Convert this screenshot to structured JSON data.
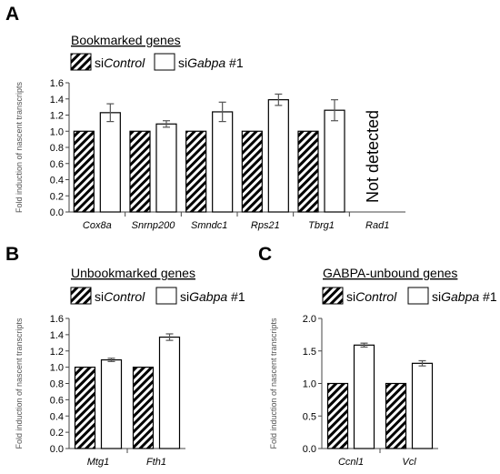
{
  "colors": {
    "bar_stroke": "#000000",
    "error_bar": "#555555",
    "control_fill": "hatched-diagonal",
    "treatment_fill": "#ffffff"
  },
  "panels": [
    {
      "letter": "A",
      "title": "Bookmarked genes",
      "legend": [
        [
          "si",
          "Control",
          ""
        ],
        [
          "si",
          "Gabpa",
          " #1"
        ]
      ]
    },
    {
      "letter": "B",
      "title": "Unbookmarked genes",
      "legend": [
        [
          "si",
          "Control",
          ""
        ],
        [
          "si",
          "Gabpa",
          " #1"
        ]
      ]
    },
    {
      "letter": "C",
      "title": "GABPA-unbound genes",
      "legend": [
        [
          "si",
          "Control",
          ""
        ],
        [
          "si",
          "Gabpa",
          " #1"
        ]
      ]
    }
  ],
  "chart_data": [
    {
      "type": "bar",
      "title": "Bookmarked genes",
      "ylabel": "Fold induction of nascent transcripts",
      "ylim": [
        0,
        1.6
      ],
      "yticks": [
        "0.0",
        "0.2",
        "0.4",
        "0.6",
        "0.8",
        "1.0",
        "1.2",
        "1.4",
        "1.6"
      ],
      "categories": [
        "Cox8a",
        "Snrnp200",
        "Smndc1",
        "Rps21",
        "Tbrg1",
        "Rad1"
      ],
      "series": [
        {
          "name": "siControl",
          "values": [
            1.0,
            1.0,
            1.0,
            1.0,
            1.0,
            null
          ]
        },
        {
          "name": "siGabpa #1",
          "values": [
            1.23,
            1.09,
            1.24,
            1.39,
            1.26,
            null
          ],
          "errors": [
            0.11,
            0.04,
            0.12,
            0.07,
            0.13,
            null
          ]
        }
      ],
      "annotation": "Not detected"
    },
    {
      "type": "bar",
      "title": "Unbookmarked genes",
      "ylabel": "Fold induction of nascent transcripts",
      "ylim": [
        0,
        1.6
      ],
      "yticks": [
        "0.0",
        "0.2",
        "0.4",
        "0.6",
        "0.8",
        "1.0",
        "1.2",
        "1.4",
        "1.6"
      ],
      "categories": [
        "Mtg1",
        "Fth1"
      ],
      "series": [
        {
          "name": "siControl",
          "values": [
            1.0,
            1.0
          ]
        },
        {
          "name": "siGabpa #1",
          "values": [
            1.09,
            1.37
          ],
          "errors": [
            0.02,
            0.04
          ]
        }
      ]
    },
    {
      "type": "bar",
      "title": "GABPA-unbound genes",
      "ylabel": "Fold induction of nascent transcripts",
      "ylim": [
        0,
        2.0
      ],
      "yticks": [
        "0.0",
        "0.5",
        "1.0",
        "1.5",
        "2.0"
      ],
      "categories": [
        "Ccnl1",
        "Vcl"
      ],
      "series": [
        {
          "name": "siControl",
          "values": [
            1.0,
            1.0
          ]
        },
        {
          "name": "siGabpa #1",
          "values": [
            1.59,
            1.31
          ],
          "errors": [
            0.03,
            0.04
          ]
        }
      ]
    }
  ]
}
